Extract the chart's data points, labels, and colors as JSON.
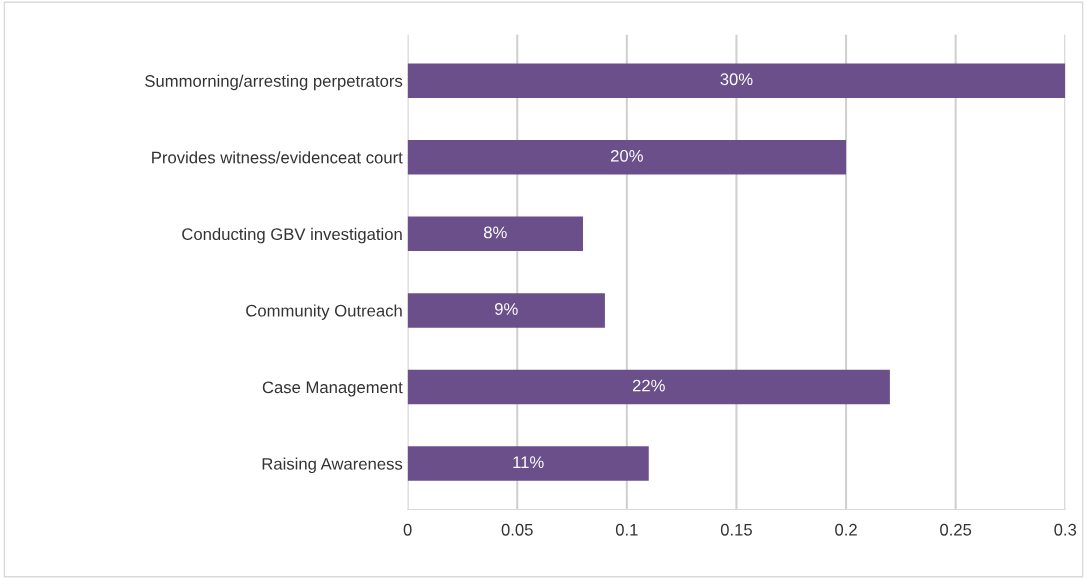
{
  "chart_data": {
    "type": "bar",
    "orientation": "horizontal",
    "categories": [
      "Summorning/arresting perpetrators",
      "Provides witness/evidenceat court",
      "Conducting GBV investigation",
      "Community Outreach",
      "Case Management",
      "Raising Awareness"
    ],
    "values": [
      0.3,
      0.2,
      0.08,
      0.09,
      0.22,
      0.11
    ],
    "value_labels": [
      "30%",
      "20%",
      "8%",
      "9%",
      "22%",
      "11%"
    ],
    "color": "#6a4f8a",
    "xlim": [
      0,
      0.3
    ],
    "xticks": [
      0,
      0.05,
      0.1,
      0.15,
      0.2,
      0.25,
      0.3
    ],
    "grid": "x",
    "legend": false
  }
}
